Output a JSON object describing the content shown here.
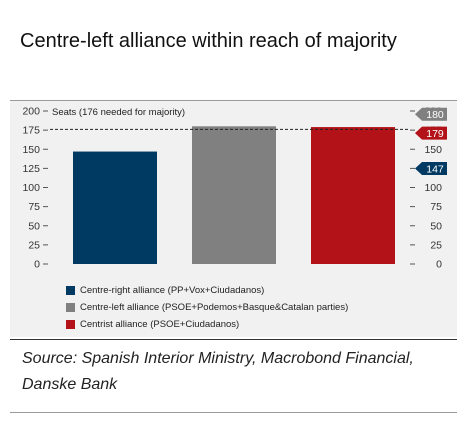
{
  "title": "Centre-left alliance within reach of majority",
  "source": "Source: Spanish Interior Ministry, Macrobond Financial, Danske Bank",
  "chart_data": {
    "type": "bar",
    "ylabel": "Seats (176 needed for majority)",
    "ylim": [
      0,
      200
    ],
    "yticks": [
      0,
      25,
      50,
      75,
      100,
      125,
      150,
      175,
      200
    ],
    "grid": false,
    "reference_line": 176,
    "legend_placement": "bottom-left",
    "series": [
      {
        "name": "Centre-right alliance (PP+Vox+Ciudadanos)",
        "value": 147,
        "color": "#003a63"
      },
      {
        "name": "Centre-left alliance (PSOE+Podemos+Basque&Catalan parties)",
        "value": 180,
        "color": "#808080"
      },
      {
        "name": "Centrist alliance (PSOE+Ciudadanos)",
        "value": 179,
        "color": "#b31318"
      }
    ]
  }
}
